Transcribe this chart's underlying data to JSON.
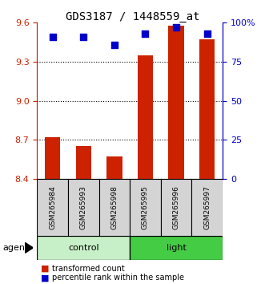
{
  "title": "GDS3187 / 1448559_at",
  "samples": [
    "GSM265984",
    "GSM265993",
    "GSM265998",
    "GSM265995",
    "GSM265996",
    "GSM265997"
  ],
  "bar_values": [
    8.72,
    8.65,
    8.57,
    9.35,
    9.58,
    9.47
  ],
  "bar_baseline": 8.4,
  "percentile_values": [
    91,
    91,
    86,
    93,
    97,
    93
  ],
  "ylim_left": [
    8.4,
    9.6
  ],
  "ylim_right": [
    0,
    100
  ],
  "yticks_left": [
    8.4,
    8.7,
    9.0,
    9.3,
    9.6
  ],
  "yticks_right": [
    0,
    25,
    50,
    75,
    100
  ],
  "ytick_labels_right": [
    "0",
    "25",
    "50",
    "75",
    "100%"
  ],
  "bar_color": "#cc2200",
  "dot_color": "#0000cc",
  "groups": [
    {
      "label": "control",
      "indices": [
        0,
        1,
        2
      ],
      "color": "#c8f0c8"
    },
    {
      "label": "light",
      "indices": [
        3,
        4,
        5
      ],
      "color": "#44cc44"
    }
  ],
  "agent_label": "agent",
  "legend_bar_label": "transformed count",
  "legend_dot_label": "percentile rank within the sample",
  "bar_width": 0.5,
  "dot_size": 35
}
